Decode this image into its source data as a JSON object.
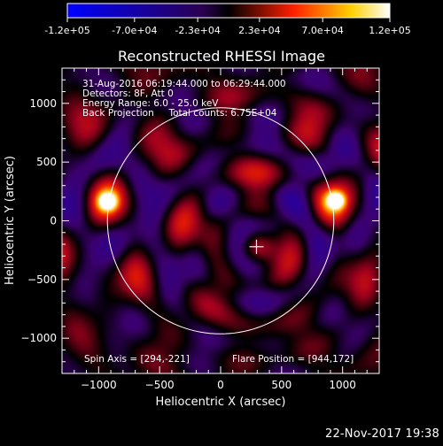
{
  "chart_data": {
    "type": "heatmap",
    "title": "Reconstructed RHESSI Image",
    "xlabel": "Heliocentric X (arcsec)",
    "ylabel": "Heliocentric Y (arcsec)",
    "xlim": [
      -1300,
      1300
    ],
    "ylim": [
      -1300,
      1300
    ],
    "xticks": [
      -1000,
      -500,
      0,
      500,
      1000
    ],
    "yticks": [
      -1000,
      -500,
      0,
      500,
      1000
    ],
    "xtick_labels": [
      "−1000",
      "−500",
      "0",
      "500",
      "1000"
    ],
    "ytick_labels": [
      "−1000",
      "−500",
      "0",
      "500",
      "1000"
    ],
    "colorbar": {
      "min": -120000,
      "max": 120000,
      "tick_labels": [
        "-1.2e+05",
        "-7.0e+04",
        "-2.3e+04",
        "2.3e+04",
        "7.0e+04",
        "1.2e+05"
      ],
      "colors": [
        "#0000ff",
        "#000000",
        "#ff0000",
        "#ffff00",
        "#ffffff"
      ]
    },
    "info_lines": [
      "31-Aug-2016 06:19:44.000 to 06:29:44.000",
      "Detectors: 8F, Att 0",
      "Energy Range: 6.0 - 25.0 keV",
      "Back Projection     Total counts: 6.75E+04"
    ],
    "spin_axis_label": "Spin Axis = [294,-221]",
    "flare_position_label": "Flare Position = [944,172]",
    "spin_axis": [
      294,
      -221
    ],
    "flare_position": [
      944,
      172
    ],
    "solar_limb_radius": 945,
    "bright_sources": [
      {
        "x": 944,
        "y": 172,
        "intensity": 1.0
      },
      {
        "x": -925,
        "y": 165,
        "intensity": 1.0
      }
    ]
  },
  "footer": {
    "timestamp": "22-Nov-2017 19:38"
  }
}
